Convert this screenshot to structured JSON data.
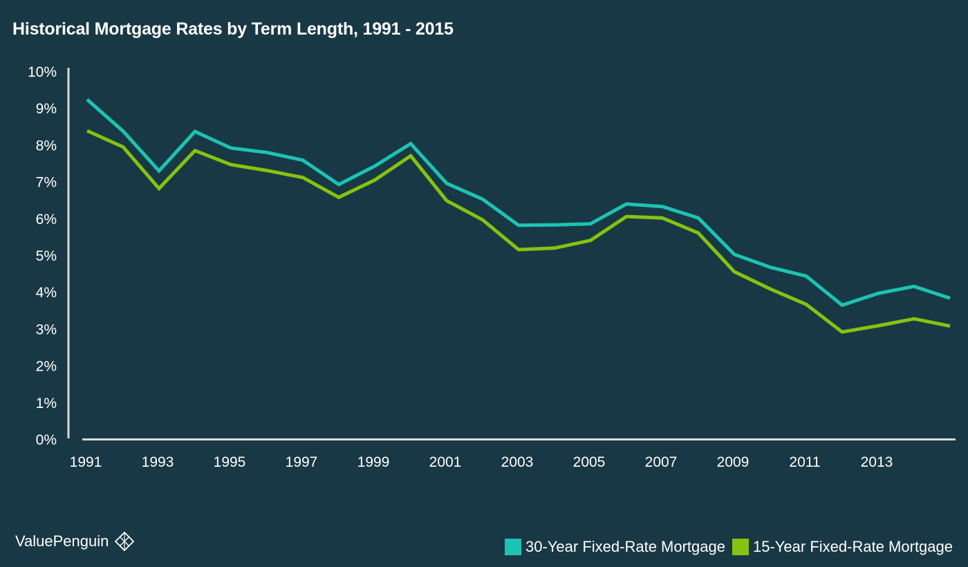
{
  "colors": {
    "background": "#193845",
    "series_30yr": "#1cc3b2",
    "series_15yr": "#86c20f",
    "axis": "#d9d9d9"
  },
  "brand": {
    "name": "ValuePenguin",
    "icon": "penguin-diamond-icon"
  },
  "chart_data": {
    "type": "line",
    "title": "Historical Mortgage Rates by Term Length, 1991 - 2015",
    "xlabel": "",
    "ylabel": "",
    "x": [
      1991,
      1992,
      1993,
      1994,
      1995,
      1996,
      1997,
      1998,
      1999,
      2000,
      2001,
      2002,
      2003,
      2004,
      2005,
      2006,
      2007,
      2008,
      2009,
      2010,
      2011,
      2012,
      2013,
      2014,
      2015
    ],
    "x_tick_labels": [
      "1991",
      "1993",
      "1995",
      "1997",
      "1999",
      "2001",
      "2003",
      "2005",
      "2007",
      "2009",
      "2011",
      "2013"
    ],
    "y_tick_labels": [
      "0%",
      "1%",
      "2%",
      "3%",
      "4%",
      "5%",
      "6%",
      "7%",
      "8%",
      "9%",
      "10%"
    ],
    "ylim": [
      0,
      10
    ],
    "xlim": [
      1991,
      2015
    ],
    "grid": false,
    "legend_position": "bottom-right",
    "series": [
      {
        "name": "30-Year Fixed-Rate Mortgage",
        "values": [
          9.25,
          8.39,
          7.31,
          8.38,
          7.93,
          7.81,
          7.6,
          6.94,
          7.44,
          8.05,
          6.97,
          6.54,
          5.83,
          5.84,
          5.87,
          6.41,
          6.34,
          6.03,
          5.04,
          4.69,
          4.45,
          3.66,
          3.98,
          4.17,
          3.85
        ]
      },
      {
        "name": "15-Year Fixed-Rate Mortgage",
        "values": [
          8.4,
          7.96,
          6.83,
          7.86,
          7.48,
          7.32,
          7.13,
          6.59,
          7.06,
          7.72,
          6.5,
          5.98,
          5.17,
          5.21,
          5.42,
          6.07,
          6.03,
          5.62,
          4.57,
          4.1,
          3.68,
          2.93,
          3.1,
          3.29,
          3.09
        ]
      }
    ]
  }
}
